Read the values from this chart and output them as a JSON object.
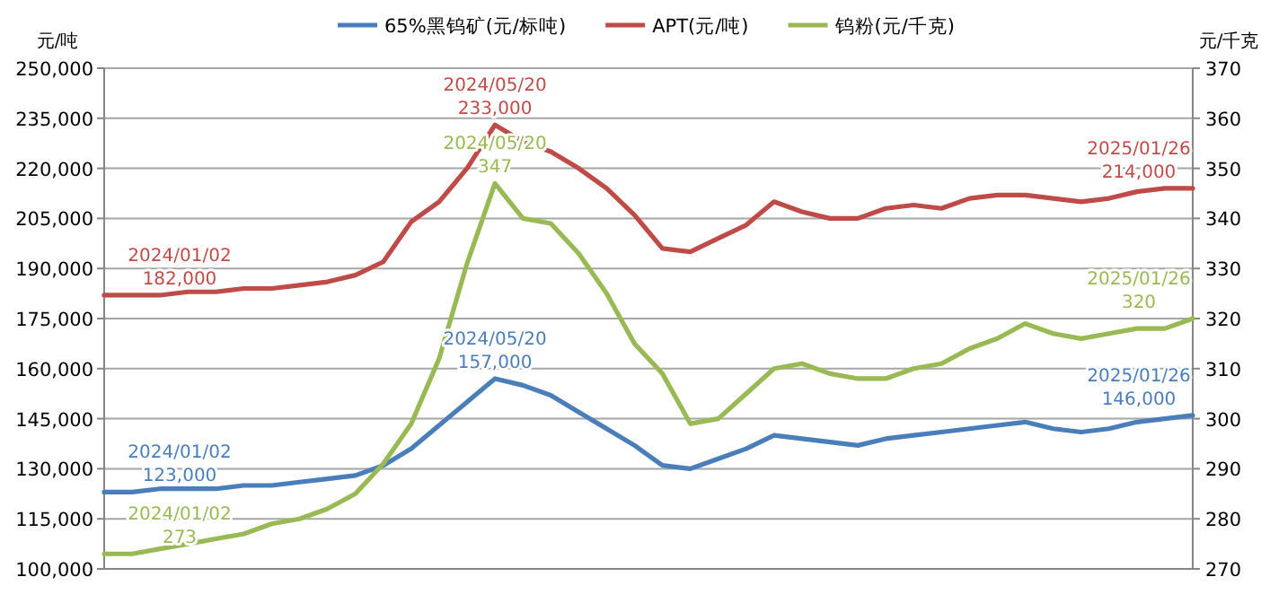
{
  "chart_data": {
    "type": "line",
    "ylabel": "元/吨",
    "y2label": "元/千克",
    "legend": "top",
    "grid": "y",
    "categories": [
      null,
      null,
      null,
      null,
      null,
      null,
      null,
      null,
      null,
      null,
      null,
      null,
      null,
      null,
      null,
      null,
      null,
      null,
      null,
      null,
      null,
      null,
      null,
      null,
      null,
      null,
      null,
      null,
      null,
      null,
      null,
      null,
      null,
      null,
      null,
      null,
      null,
      null,
      null,
      null
    ],
    "ylim": [
      100000,
      250000
    ],
    "yticks": [
      {
        "value": 100000,
        "label": "100,000"
      },
      {
        "value": 115000,
        "label": "115,000"
      },
      {
        "value": 130000,
        "label": "130,000"
      },
      {
        "value": 145000,
        "label": "145,000"
      },
      {
        "value": 160000,
        "label": "160,000"
      },
      {
        "value": 175000,
        "label": "175,000"
      },
      {
        "value": 190000,
        "label": "190,000"
      },
      {
        "value": 205000,
        "label": "205,000"
      },
      {
        "value": 220000,
        "label": "220,000"
      },
      {
        "value": 235000,
        "label": "235,000"
      },
      {
        "value": 250000,
        "label": "250,000"
      }
    ],
    "y2lim": [
      270,
      370
    ],
    "y2ticks": [
      270,
      280,
      290,
      300,
      310,
      320,
      330,
      340,
      350,
      360,
      370
    ],
    "series": [
      {
        "name": "65%黑钨矿(元/标吨)",
        "color": "#4a7ebb",
        "values": [
          123000,
          123000,
          124000,
          124000,
          124000,
          125000,
          125000,
          126000,
          127000,
          128000,
          131000,
          136000,
          143000,
          150000,
          157000,
          155000,
          152000,
          147000,
          142000,
          137000,
          131000,
          130000,
          133000,
          136000,
          140000,
          139000,
          138000,
          137000,
          139000,
          140000,
          141000,
          142000,
          143000,
          144000,
          142000,
          141000,
          142000,
          144000,
          145000,
          146000
        ]
      },
      {
        "name": "APT(元/吨)",
        "color": "#be4b48",
        "values": [
          182000,
          182000,
          182000,
          183000,
          183000,
          184000,
          184000,
          185000,
          186000,
          188000,
          192000,
          204000,
          210000,
          220000,
          233000,
          228000,
          225000,
          220000,
          214000,
          206000,
          196000,
          195000,
          199000,
          203000,
          210000,
          207000,
          205000,
          205000,
          208000,
          209000,
          208000,
          211000,
          212000,
          212000,
          211000,
          210000,
          211000,
          213000,
          214000,
          214000
        ]
      },
      {
        "name": "钨粉(元/千克)",
        "color": "#98b954",
        "axis": "y2",
        "values": [
          273,
          273,
          274,
          275,
          276,
          277,
          279,
          280,
          282,
          285,
          291,
          299,
          312,
          331,
          347,
          340,
          339,
          333,
          325,
          315,
          309,
          299,
          300,
          305,
          310,
          311,
          309,
          308,
          308,
          310,
          311,
          314,
          316,
          319,
          317,
          316,
          317,
          318,
          318,
          320
        ]
      }
    ],
    "annotations": [
      {
        "text": "2024/01/02\n182,000",
        "y": 182000
      },
      {
        "text": "2024/05/20\n233,000",
        "y": 233000
      },
      {
        "text": "2025/01/26\n214,000",
        "y": 214000
      },
      {
        "text": "2024/01/02\n123,000",
        "y": 123000
      },
      {
        "text": "2024/05/20\n157,000",
        "y": 157000
      },
      {
        "text": "2025/01/26\n146,000",
        "y": 146000
      },
      "2024/01/02\n273",
      "2024/05/20\n347",
      "2025/01/26\n320"
    ]
  }
}
